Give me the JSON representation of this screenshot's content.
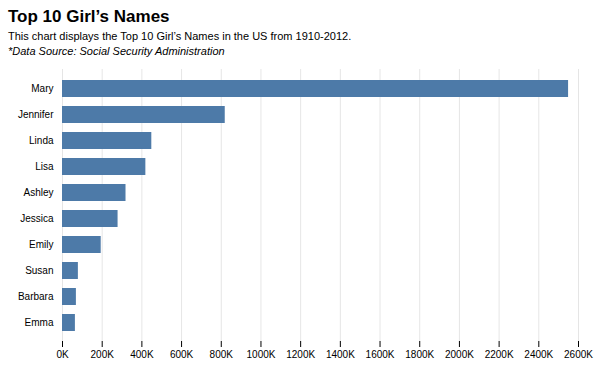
{
  "chart_data": {
    "type": "bar",
    "orientation": "horizontal",
    "title": "Top 10 Girl’s Names",
    "subtitle": "This chart displays the Top 10 Girl’s Names in the US from 1910-2012.",
    "annotations": [
      "*Data Source: Social Security Administration"
    ],
    "categories": [
      "Mary",
      "Jennifer",
      "Linda",
      "Lisa",
      "Ashley",
      "Jessica",
      "Emily",
      "Susan",
      "Barbara",
      "Emma"
    ],
    "values": [
      2550000,
      820000,
      450000,
      420000,
      320000,
      280000,
      195000,
      80000,
      70000,
      65000
    ],
    "color": "#4d7aa8",
    "xlim": [
      0,
      2600000
    ],
    "xticks": [
      {
        "value": 0,
        "label": "0K"
      },
      {
        "value": 200000,
        "label": "200K"
      },
      {
        "value": 400000,
        "label": "400K"
      },
      {
        "value": 600000,
        "label": "600K"
      },
      {
        "value": 800000,
        "label": "800K"
      },
      {
        "value": 1000000,
        "label": "1000K"
      },
      {
        "value": 1200000,
        "label": "1200K"
      },
      {
        "value": 1400000,
        "label": "1400K"
      },
      {
        "value": 1600000,
        "label": "1600K"
      },
      {
        "value": 1800000,
        "label": "1800K"
      },
      {
        "value": 2000000,
        "label": "2000K"
      },
      {
        "value": 2200000,
        "label": "2200K"
      },
      {
        "value": 2400000,
        "label": "2400K"
      },
      {
        "value": 2600000,
        "label": "2600K"
      }
    ],
    "grid": true
  }
}
